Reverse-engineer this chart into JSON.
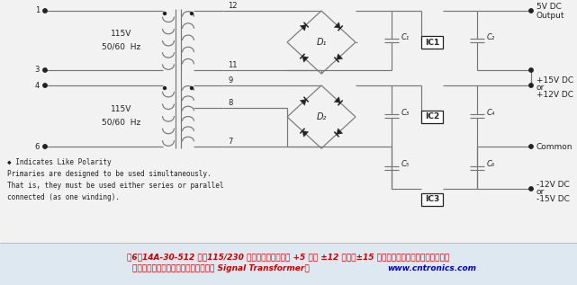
{
  "bg_color": "#f2f2f2",
  "line_color": "#777777",
  "dark_color": "#222222",
  "white": "#ffffff",
  "title_color": "#cc0000",
  "url_color": "#0000cc",
  "title_line1": "图6：14A-30-512 采用115/230 伏输入电压，适用于 +5 伏或 ±12 伏直流±15 伏直流电源，具体取决于用户如何",
  "title_line2": "连接初级和次级侧绕组。（图片来源： Signal Transformer）",
  "url_text": "www.cntronics.com",
  "notes_line1": "◆ Indicates Like Polarity",
  "notes_line2": "Primaries are designed to be used simultaneously.",
  "notes_line3": "That is, they must be used either series or parallel",
  "notes_line4": "connected (as one winding)."
}
